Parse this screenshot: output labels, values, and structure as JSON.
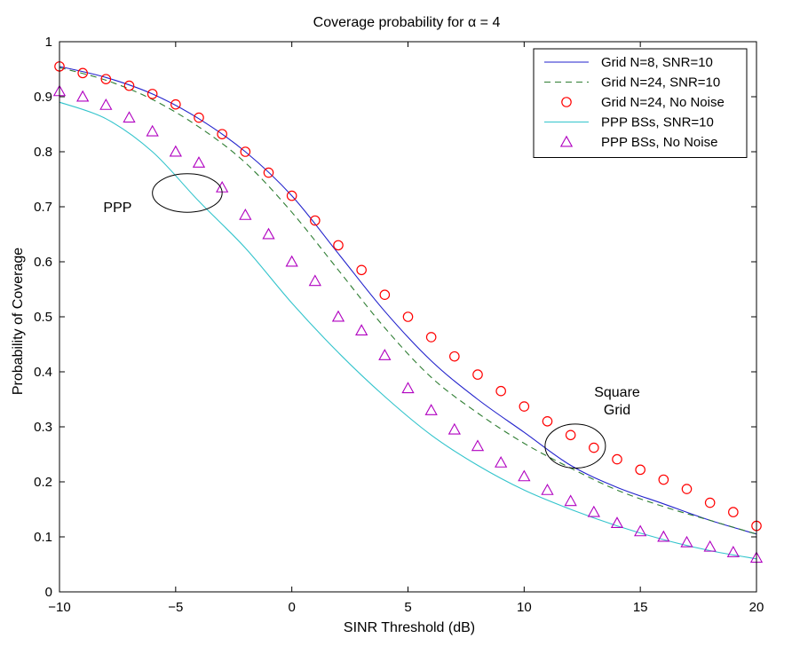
{
  "chart_data": {
    "type": "line",
    "title": "Coverage probability for α = 4",
    "xlabel": "SINR Threshold (dB)",
    "ylabel": "Probability of Coverage",
    "xlim": [
      -10,
      20
    ],
    "ylim": [
      0,
      1
    ],
    "xticks": [
      -10,
      -5,
      0,
      5,
      10,
      15,
      20
    ],
    "xtick_labels": [
      "−10",
      "−5",
      "0",
      "5",
      "10",
      "15",
      "20"
    ],
    "yticks": [
      0,
      0.1,
      0.2,
      0.3,
      0.4,
      0.5,
      0.6,
      0.7,
      0.8,
      0.9,
      1
    ],
    "ytick_labels": [
      "0",
      "0.1",
      "0.2",
      "0.3",
      "0.4",
      "0.5",
      "0.6",
      "0.7",
      "0.8",
      "0.9",
      "1"
    ],
    "grid": false,
    "legend_position": "top-right",
    "series": [
      {
        "name": "Grid N=8, SNR=10",
        "style": "solid",
        "marker": "none",
        "color": "#2222cc",
        "x": [
          -10,
          -8,
          -6,
          -4,
          -2,
          0,
          2,
          4,
          6,
          8,
          10,
          12,
          14,
          16,
          18,
          20
        ],
        "y": [
          0.955,
          0.935,
          0.905,
          0.86,
          0.8,
          0.72,
          0.615,
          0.51,
          0.42,
          0.35,
          0.29,
          0.23,
          0.19,
          0.16,
          0.13,
          0.105
        ]
      },
      {
        "name": "Grid N=24, SNR=10",
        "style": "dashed",
        "marker": "none",
        "color": "#2e7d32",
        "x": [
          -10,
          -8,
          -6,
          -4,
          -2,
          0,
          2,
          4,
          6,
          8,
          10,
          12,
          14,
          16,
          18,
          20
        ],
        "y": [
          0.953,
          0.93,
          0.895,
          0.845,
          0.78,
          0.69,
          0.585,
          0.48,
          0.39,
          0.325,
          0.27,
          0.225,
          0.185,
          0.155,
          0.13,
          0.105
        ]
      },
      {
        "name": "Grid N=24, No Noise",
        "style": "none",
        "marker": "circle",
        "color": "#ff0000",
        "x": [
          -10,
          -9,
          -8,
          -7,
          -6,
          -5,
          -4,
          -3,
          -2,
          -1,
          0,
          1,
          2,
          3,
          4,
          5,
          6,
          7,
          8,
          9,
          10,
          11,
          12,
          13,
          14,
          15,
          16,
          17,
          18,
          19,
          20
        ],
        "y": [
          0.955,
          0.943,
          0.932,
          0.92,
          0.905,
          0.886,
          0.862,
          0.832,
          0.8,
          0.762,
          0.72,
          0.675,
          0.63,
          0.585,
          0.54,
          0.5,
          0.463,
          0.428,
          0.395,
          0.365,
          0.337,
          0.31,
          0.285,
          0.262,
          0.241,
          0.222,
          0.204,
          0.187,
          0.162,
          0.145,
          0.12
        ]
      },
      {
        "name": "PPP BSs, SNR=10",
        "style": "solid",
        "marker": "none",
        "color": "#33c4cc",
        "x": [
          -10,
          -8,
          -6,
          -4,
          -2,
          0,
          2,
          4,
          6,
          8,
          10,
          12,
          14,
          16,
          18,
          20
        ],
        "y": [
          0.89,
          0.86,
          0.8,
          0.71,
          0.625,
          0.525,
          0.435,
          0.355,
          0.285,
          0.23,
          0.185,
          0.15,
          0.12,
          0.095,
          0.075,
          0.06
        ]
      },
      {
        "name": "PPP BSs, No Noise",
        "style": "none",
        "marker": "triangle",
        "color": "#b000c0",
        "x": [
          -10,
          -9,
          -8,
          -7,
          -6,
          -5,
          -4,
          -3,
          -2,
          -1,
          0,
          1,
          2,
          3,
          4,
          5,
          6,
          7,
          8,
          9,
          10,
          11,
          12,
          13,
          14,
          15,
          16,
          17,
          18,
          19,
          20
        ],
        "y": [
          0.91,
          0.9,
          0.885,
          0.862,
          0.837,
          0.8,
          0.78,
          0.735,
          0.685,
          0.65,
          0.6,
          0.565,
          0.5,
          0.475,
          0.43,
          0.37,
          0.33,
          0.295,
          0.265,
          0.235,
          0.21,
          0.185,
          0.165,
          0.145,
          0.125,
          0.11,
          0.1,
          0.09,
          0.082,
          0.072,
          0.062
        ]
      }
    ],
    "annotations": [
      {
        "lines": [
          "PPP"
        ],
        "x": -7.5,
        "y": 0.69
      },
      {
        "lines": [
          "Square",
          "Grid"
        ],
        "x": 14,
        "y": 0.355
      }
    ],
    "ellipses": [
      {
        "cx": -4.5,
        "cy": 0.725,
        "rx": 1.5,
        "ry": 0.035
      },
      {
        "cx": 12.2,
        "cy": 0.265,
        "rx": 1.3,
        "ry": 0.04
      }
    ]
  }
}
